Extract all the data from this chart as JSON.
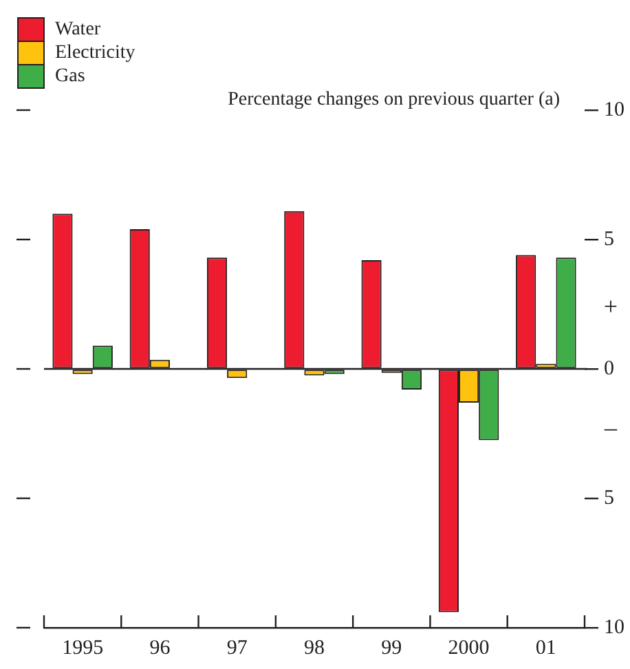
{
  "chart_data": {
    "type": "bar",
    "title": "Percentage changes on previous quarter (a)",
    "categories": [
      "1995",
      "96",
      "97",
      "98",
      "99",
      "2000",
      "01"
    ],
    "series": [
      {
        "name": "Water",
        "color": "#ed1c2e",
        "values": [
          6.0,
          5.4,
          4.3,
          6.1,
          4.2,
          -9.4,
          4.4
        ]
      },
      {
        "name": "Electricity",
        "color": "#ffc20e",
        "values": [
          -0.2,
          0.35,
          -0.35,
          -0.25,
          -0.15,
          -1.3,
          0.2
        ]
      },
      {
        "name": "Gas",
        "color": "#3fae49",
        "values": [
          0.9,
          null,
          null,
          -0.2,
          -0.8,
          -2.75,
          4.3
        ]
      }
    ],
    "ylim": [
      -10,
      10
    ],
    "yticks": [
      {
        "value": 10,
        "label": "10"
      },
      5,
      0,
      {
        "value": -5,
        "label": "5"
      },
      {
        "value": -10,
        "label": "10"
      }
    ],
    "annotations": [
      "+",
      "–"
    ],
    "legend": "top left"
  }
}
